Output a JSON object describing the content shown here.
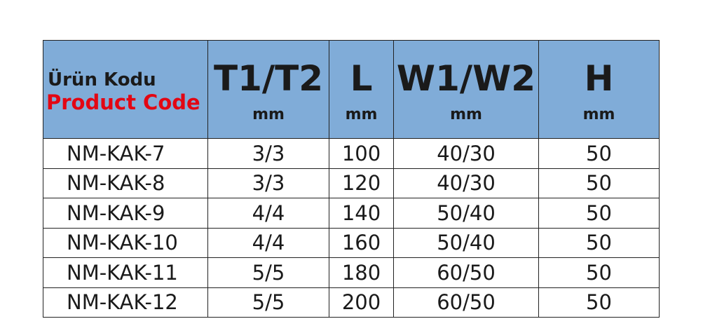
{
  "header": {
    "code_tr": "Ürün Kodu",
    "code_en": "Product Code",
    "columns": [
      {
        "label": "T1/T2",
        "unit": "mm"
      },
      {
        "label": "L",
        "unit": "mm"
      },
      {
        "label": "W1/W2",
        "unit": "mm"
      },
      {
        "label": "H",
        "unit": "mm"
      }
    ]
  },
  "colors": {
    "header_bg": "#80acd8",
    "code_en": "#e30613"
  },
  "rows": [
    [
      "NM-KAK-7",
      "3/3",
      "100",
      "40/30",
      "50"
    ],
    [
      "NM-KAK-8",
      "3/3",
      "120",
      "40/30",
      "50"
    ],
    [
      "NM-KAK-9",
      "4/4",
      "140",
      "50/40",
      "50"
    ],
    [
      "NM-KAK-10",
      "4/4",
      "160",
      "50/40",
      "50"
    ],
    [
      "NM-KAK-11",
      "5/5",
      "180",
      "60/50",
      "50"
    ],
    [
      "NM-KAK-12",
      "5/5",
      "200",
      "60/50",
      "50"
    ]
  ]
}
